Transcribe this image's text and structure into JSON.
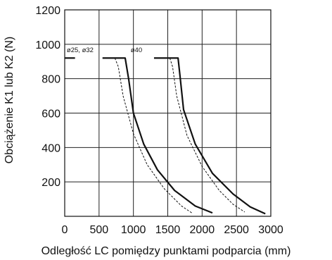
{
  "chart_data": {
    "type": "line",
    "title": "",
    "xlabel": "Odległość LC pomiędzy punktami podparcia (mm)",
    "ylabel": "Obciążenie K1 lub K2  (N)",
    "xlim": [
      0,
      3000
    ],
    "ylim": [
      0,
      1200
    ],
    "x_ticks": [
      "0",
      "500",
      "1000",
      "1500",
      "2000",
      "2500",
      "3000"
    ],
    "y_ticks": [
      "200",
      "400",
      "600",
      "800",
      "1000",
      "1200"
    ],
    "grid": true,
    "annotations": [
      {
        "text": "ø25, ø32",
        "x": 30,
        "y": 955
      },
      {
        "text": "ø40",
        "x": 960,
        "y": 955
      }
    ],
    "series": [
      {
        "style": "solid",
        "x": [
          0,
          150
        ],
        "y": [
          920,
          920
        ]
      },
      {
        "style": "solid",
        "x": [
          550,
          880,
          930,
          1000,
          1150,
          1350,
          1600,
          1900,
          2150
        ],
        "y": [
          920,
          920,
          800,
          600,
          420,
          270,
          150,
          60,
          20
        ]
      },
      {
        "style": "dashed",
        "x": [
          730,
          780,
          850,
          1000,
          1200,
          1450,
          1700,
          1850
        ],
        "y": [
          920,
          870,
          700,
          480,
          300,
          160,
          60,
          20
        ]
      },
      {
        "style": "solid",
        "x": [
          1300,
          1650,
          1680,
          1730,
          1900,
          2150,
          2450,
          2700,
          2920
        ],
        "y": [
          920,
          920,
          810,
          620,
          420,
          250,
          130,
          55,
          15
        ]
      },
      {
        "style": "dashed",
        "x": [
          1530,
          1570,
          1630,
          1780,
          2000,
          2250,
          2450,
          2620
        ],
        "y": [
          920,
          870,
          700,
          470,
          290,
          150,
          70,
          25
        ]
      }
    ]
  }
}
